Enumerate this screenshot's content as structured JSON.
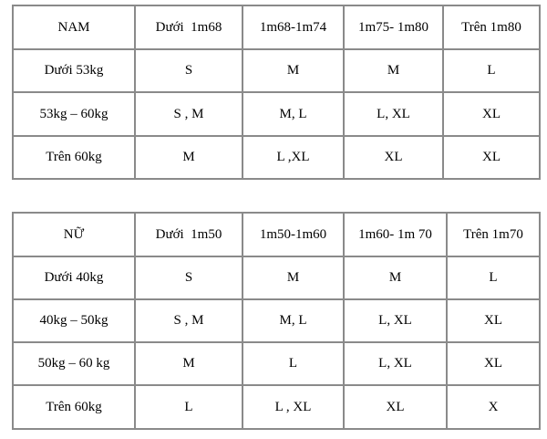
{
  "tables": [
    {
      "header": [
        "NAM",
        "Dưới  1m68",
        "1m68-1m74",
        "1m75- 1m80",
        "Trên 1m80"
      ],
      "rows": [
        [
          "Dưới 53kg",
          "S",
          "M",
          "M",
          "L"
        ],
        [
          "53kg – 60kg",
          "S , M",
          "M, L",
          "L, XL",
          "XL"
        ],
        [
          "Trên 60kg",
          "M",
          "L ,XL",
          "XL",
          "XL"
        ]
      ]
    },
    {
      "header": [
        "NỮ",
        "Dưới  1m50",
        "1m50-1m60",
        "1m60- 1m 70",
        "Trên 1m70"
      ],
      "rows": [
        [
          "Dưới 40kg",
          "S",
          "M",
          "M",
          "L"
        ],
        [
          "40kg – 50kg",
          "S , M",
          "M, L",
          "L, XL",
          "XL"
        ],
        [
          "50kg – 60 kg",
          "M",
          "L",
          "L, XL",
          "XL"
        ],
        [
          "Trên 60kg",
          "L",
          "L , XL",
          "XL",
          "X"
        ]
      ]
    }
  ]
}
